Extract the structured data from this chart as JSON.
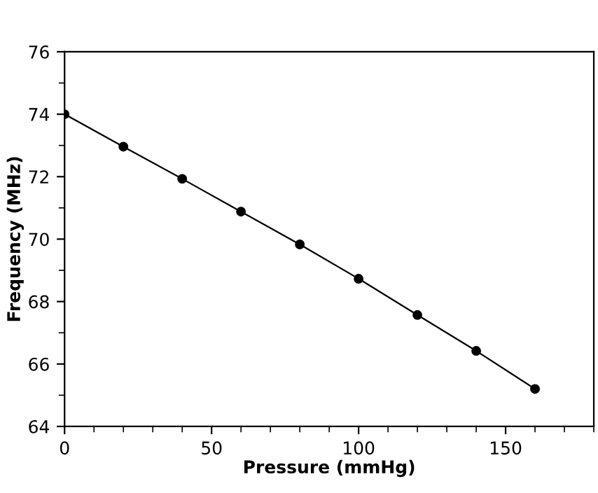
{
  "chart_data": {
    "type": "line",
    "xlabel": "Pressure (mmHg)",
    "ylabel": "Frequency (MHz)",
    "x": [
      0,
      20,
      40,
      60,
      80,
      100,
      120,
      140,
      160
    ],
    "series": [
      {
        "color": "#000000",
        "values": [
          74.0,
          72.96,
          71.93,
          70.88,
          69.83,
          68.73,
          67.57,
          66.42,
          65.2
        ]
      }
    ],
    "xlim": [
      0,
      180
    ],
    "xticks": [
      0,
      50,
      100,
      150
    ],
    "ylim": [
      64,
      76
    ],
    "yticks": [
      64,
      66,
      68,
      70,
      72,
      74,
      76
    ],
    "marker": "circle",
    "line_style": "solid",
    "grid": false,
    "legend": false
  }
}
